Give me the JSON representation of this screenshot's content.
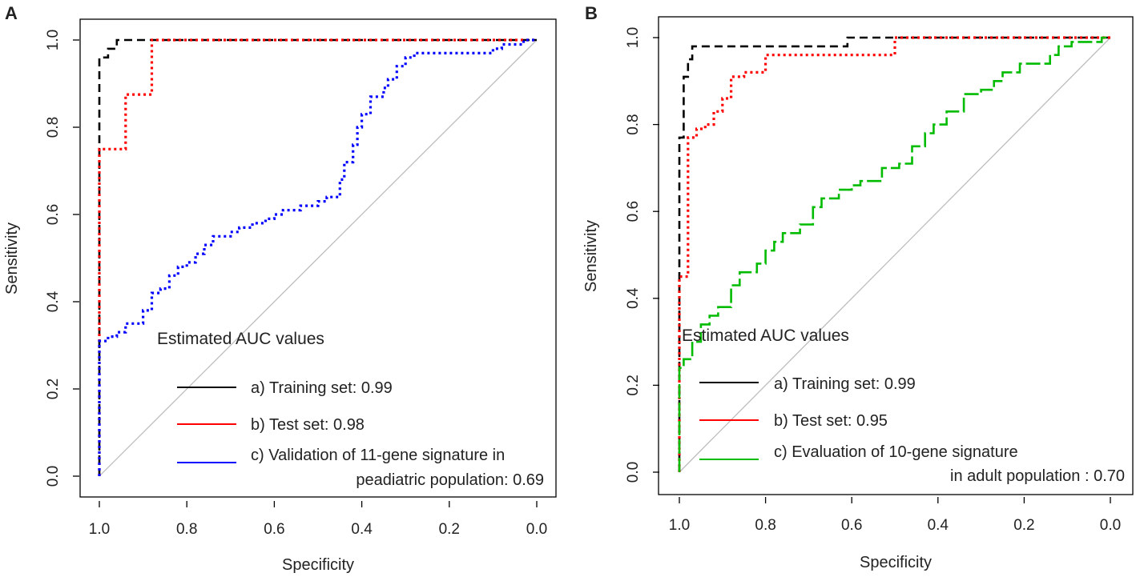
{
  "chart_data": [
    {
      "panel": "A",
      "type": "line",
      "title": "",
      "xlabel": "Specificity",
      "ylabel": "Sensitivity",
      "xlim": [
        1.0,
        0.0
      ],
      "ylim": [
        0.0,
        1.0
      ],
      "x_ticks": [
        "1.0",
        "0.8",
        "0.6",
        "0.4",
        "0.2",
        "0.0"
      ],
      "y_ticks": [
        "0.0",
        "0.2",
        "0.4",
        "0.6",
        "0.8",
        "1.0"
      ],
      "grid": false,
      "legend_title": "Estimated AUC values",
      "legend_position": "bottom-right",
      "series": [
        {
          "name": "a) Training set: 0.99",
          "color": "#000000",
          "dash": "dashed",
          "x": [
            1.0,
            1.0,
            0.98,
            0.98,
            0.96,
            0.96,
            0.0
          ],
          "y": [
            0.0,
            0.96,
            0.96,
            0.98,
            0.98,
            1.0,
            1.0
          ]
        },
        {
          "name": "b) Test set: 0.98",
          "color": "#ff0000",
          "dash": "dotted",
          "x": [
            1.0,
            1.0,
            0.94,
            0.94,
            0.88,
            0.88,
            0.0
          ],
          "y": [
            0.0,
            0.75,
            0.75,
            0.875,
            0.875,
            1.0,
            1.0
          ]
        },
        {
          "name": "c) Validation of 11-gene signature in",
          "name_line2": "peadiatric population: 0.69",
          "color": "#0000ff",
          "dash": "dotted",
          "x": [
            1.0,
            1.0,
            0.98,
            0.98,
            0.96,
            0.96,
            0.94,
            0.94,
            0.9,
            0.9,
            0.88,
            0.88,
            0.86,
            0.86,
            0.84,
            0.84,
            0.82,
            0.82,
            0.8,
            0.8,
            0.78,
            0.78,
            0.76,
            0.76,
            0.74,
            0.74,
            0.7,
            0.7,
            0.68,
            0.68,
            0.65,
            0.65,
            0.62,
            0.62,
            0.6,
            0.6,
            0.58,
            0.58,
            0.54,
            0.54,
            0.5,
            0.5,
            0.48,
            0.48,
            0.45,
            0.45,
            0.44,
            0.44,
            0.42,
            0.42,
            0.41,
            0.41,
            0.4,
            0.4,
            0.38,
            0.38,
            0.35,
            0.35,
            0.34,
            0.34,
            0.32,
            0.32,
            0.3,
            0.3,
            0.28,
            0.28,
            0.1,
            0.1,
            0.08,
            0.08,
            0.03,
            0.03,
            0.0
          ],
          "y": [
            0.0,
            0.31,
            0.31,
            0.32,
            0.32,
            0.33,
            0.33,
            0.35,
            0.35,
            0.38,
            0.38,
            0.42,
            0.42,
            0.43,
            0.43,
            0.46,
            0.46,
            0.48,
            0.48,
            0.49,
            0.49,
            0.51,
            0.51,
            0.53,
            0.53,
            0.55,
            0.55,
            0.56,
            0.56,
            0.57,
            0.57,
            0.58,
            0.58,
            0.59,
            0.59,
            0.6,
            0.6,
            0.61,
            0.61,
            0.62,
            0.62,
            0.63,
            0.63,
            0.64,
            0.64,
            0.68,
            0.68,
            0.72,
            0.72,
            0.76,
            0.76,
            0.8,
            0.8,
            0.83,
            0.83,
            0.87,
            0.87,
            0.89,
            0.89,
            0.91,
            0.91,
            0.94,
            0.94,
            0.96,
            0.96,
            0.97,
            0.97,
            0.98,
            0.98,
            0.99,
            0.99,
            1.0,
            1.0
          ]
        }
      ]
    },
    {
      "panel": "B",
      "type": "line",
      "title": "",
      "xlabel": "Specificity",
      "ylabel": "Sensitivity",
      "xlim": [
        1.0,
        0.0
      ],
      "ylim": [
        0.0,
        1.0
      ],
      "x_ticks": [
        "1.0",
        "0.8",
        "0.6",
        "0.4",
        "0.2",
        "0.0"
      ],
      "y_ticks": [
        "0.0",
        "0.2",
        "0.4",
        "0.6",
        "0.8",
        "1.0"
      ],
      "grid": false,
      "legend_title": "Estimated AUC values",
      "legend_position": "bottom-right",
      "series": [
        {
          "name": "a) Training set: 0.99",
          "color": "#000000",
          "dash": "dashed",
          "x": [
            1.0,
            1.0,
            0.99,
            0.99,
            0.98,
            0.98,
            0.97,
            0.97,
            0.61,
            0.61,
            0.0
          ],
          "y": [
            0.0,
            0.77,
            0.77,
            0.91,
            0.91,
            0.95,
            0.95,
            0.98,
            0.98,
            1.0,
            1.0
          ]
        },
        {
          "name": "b) Test set: 0.95",
          "color": "#ff0000",
          "dash": "dotted",
          "x": [
            1.0,
            1.0,
            0.98,
            0.98,
            0.96,
            0.96,
            0.94,
            0.94,
            0.92,
            0.92,
            0.9,
            0.9,
            0.88,
            0.88,
            0.85,
            0.85,
            0.8,
            0.8,
            0.5,
            0.5,
            0.0
          ],
          "y": [
            0.0,
            0.45,
            0.45,
            0.77,
            0.77,
            0.79,
            0.79,
            0.8,
            0.8,
            0.83,
            0.83,
            0.86,
            0.86,
            0.91,
            0.91,
            0.92,
            0.92,
            0.96,
            0.96,
            1.0,
            1.0
          ]
        },
        {
          "name": "c) Evaluation of 10-gene signature",
          "name_line2": "in adult population : 0.70",
          "color": "#00bb00",
          "dash": "longdash",
          "x": [
            1.0,
            1.0,
            0.99,
            0.99,
            0.97,
            0.97,
            0.95,
            0.95,
            0.93,
            0.93,
            0.91,
            0.91,
            0.88,
            0.88,
            0.86,
            0.86,
            0.82,
            0.82,
            0.8,
            0.8,
            0.78,
            0.78,
            0.76,
            0.76,
            0.72,
            0.72,
            0.69,
            0.69,
            0.67,
            0.67,
            0.63,
            0.63,
            0.6,
            0.6,
            0.58,
            0.58,
            0.53,
            0.53,
            0.49,
            0.49,
            0.46,
            0.46,
            0.43,
            0.43,
            0.41,
            0.41,
            0.38,
            0.38,
            0.34,
            0.34,
            0.3,
            0.3,
            0.27,
            0.27,
            0.25,
            0.25,
            0.21,
            0.21,
            0.14,
            0.14,
            0.12,
            0.12,
            0.09,
            0.09,
            0.02,
            0.02,
            0.0
          ],
          "y": [
            0.0,
            0.24,
            0.24,
            0.26,
            0.26,
            0.3,
            0.3,
            0.34,
            0.34,
            0.36,
            0.36,
            0.38,
            0.38,
            0.43,
            0.43,
            0.46,
            0.46,
            0.48,
            0.48,
            0.51,
            0.51,
            0.53,
            0.53,
            0.55,
            0.55,
            0.57,
            0.57,
            0.61,
            0.61,
            0.63,
            0.63,
            0.65,
            0.65,
            0.66,
            0.66,
            0.67,
            0.67,
            0.7,
            0.7,
            0.71,
            0.71,
            0.75,
            0.75,
            0.78,
            0.78,
            0.8,
            0.8,
            0.83,
            0.83,
            0.87,
            0.87,
            0.88,
            0.88,
            0.9,
            0.9,
            0.92,
            0.92,
            0.94,
            0.94,
            0.96,
            0.96,
            0.98,
            0.98,
            0.99,
            0.99,
            1.0,
            1.0
          ]
        }
      ]
    }
  ]
}
